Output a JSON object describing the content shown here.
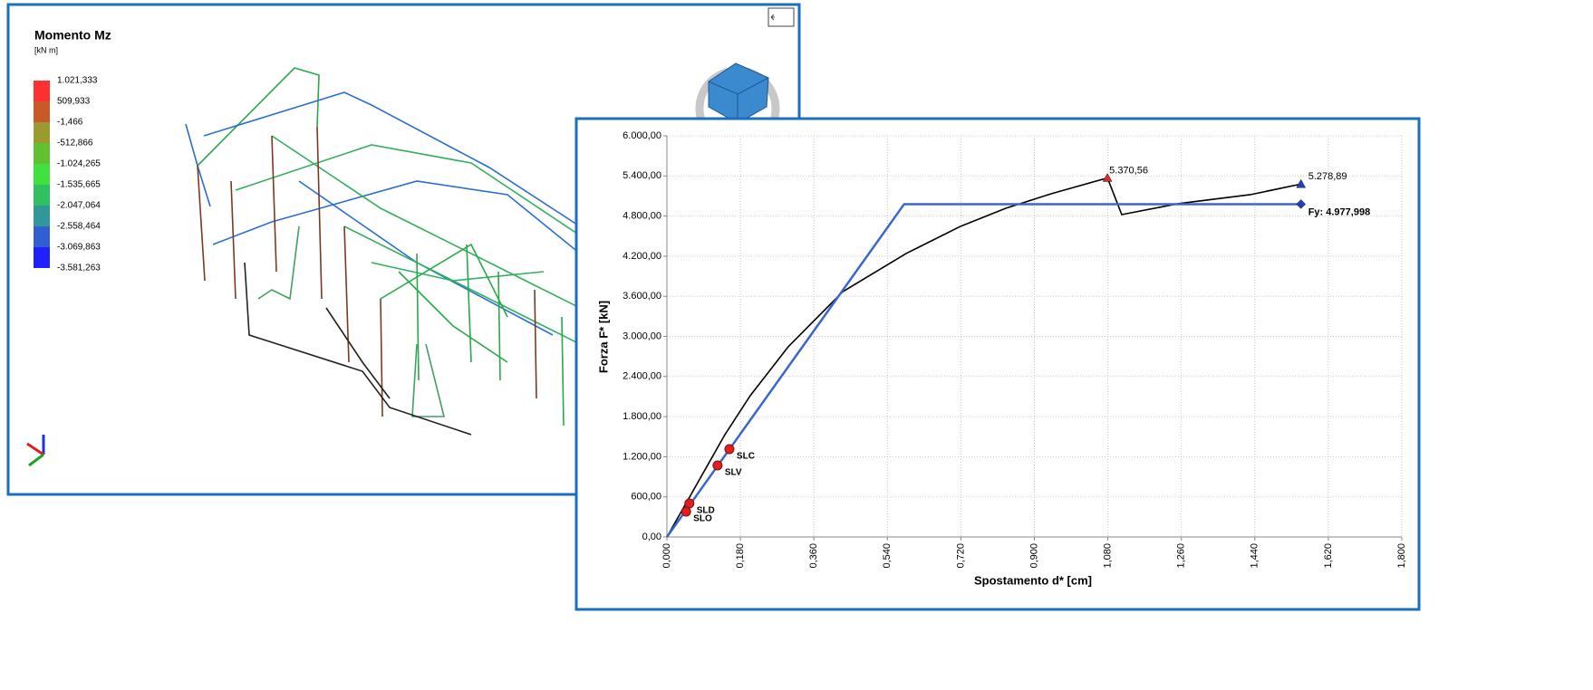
{
  "model_view": {
    "legend_title": "Momento Mz",
    "legend_unit": "[kN m]",
    "legend": [
      {
        "label": "1.021,333",
        "color": "#ff3030"
      },
      {
        "label": "509,933",
        "color": "#c85a28"
      },
      {
        "label": "-1,466",
        "color": "#9a9a30"
      },
      {
        "label": "-512,866",
        "color": "#60c030"
      },
      {
        "label": "-1.024,265",
        "color": "#40e040"
      },
      {
        "label": "-1.535,665",
        "color": "#30c060"
      },
      {
        "label": "-2.047,064",
        "color": "#309898"
      },
      {
        "label": "-2.558,464",
        "color": "#3060d0"
      },
      {
        "label": "-3.069,863",
        "color": "#2020ff"
      },
      {
        "label": "-3.581,263",
        "color": null
      }
    ]
  },
  "chart_data": {
    "type": "line",
    "xlabel": "Spostamento d* [cm]",
    "ylabel": "Forza F* [kN]",
    "xlim": [
      0,
      1.8
    ],
    "ylim": [
      0,
      6000
    ],
    "grid": true,
    "xticks": [
      {
        "value": 0,
        "label": "0,000"
      },
      {
        "value": 0.18,
        "label": "0,180"
      },
      {
        "value": 0.36,
        "label": "0,360"
      },
      {
        "value": 0.54,
        "label": "0,540"
      },
      {
        "value": 0.72,
        "label": "0,720"
      },
      {
        "value": 0.9,
        "label": "0,900"
      },
      {
        "value": 1.08,
        "label": "1,080"
      },
      {
        "value": 1.26,
        "label": "1,260"
      },
      {
        "value": 1.44,
        "label": "1,440"
      },
      {
        "value": 1.62,
        "label": "1,620"
      },
      {
        "value": 1.8,
        "label": "1,800"
      }
    ],
    "yticks": [
      {
        "value": 0,
        "label": "0,00"
      },
      {
        "value": 600,
        "label": "600,00"
      },
      {
        "value": 1200,
        "label": "1.200,00"
      },
      {
        "value": 1800,
        "label": "1.800,00"
      },
      {
        "value": 2400,
        "label": "2.400,00"
      },
      {
        "value": 3000,
        "label": "3.000,00"
      },
      {
        "value": 3600,
        "label": "3.600,00"
      },
      {
        "value": 4200,
        "label": "4.200,00"
      },
      {
        "value": 4800,
        "label": "4.800,00"
      },
      {
        "value": 5400,
        "label": "5.400,00"
      },
      {
        "value": 6000,
        "label": "6.000,00"
      }
    ],
    "series": [
      {
        "color": "#000000",
        "x": [
          0,
          0.142,
          0.204,
          0.297,
          0.431,
          0.586,
          0.719,
          0.83,
          0.941,
          1.079,
          1.114,
          1.252,
          1.429,
          1.553
        ],
        "values": [
          0,
          1530,
          2113,
          2844,
          3670,
          4240,
          4646,
          4917,
          5133,
          5370.56,
          4822,
          4985,
          5120,
          5278.89
        ]
      },
      {
        "color": "#3a66d0",
        "x": [
          0,
          0.581,
          1.553
        ],
        "values": [
          0,
          4977.998,
          4977.998
        ]
      }
    ],
    "points": [
      {
        "label": "SLO",
        "x": 0.047,
        "y": 379
      },
      {
        "label": "SLD",
        "x": 0.055,
        "y": 501
      },
      {
        "label": "SLV",
        "x": 0.124,
        "y": 1070
      },
      {
        "label": "SLC",
        "x": 0.153,
        "y": 1314
      }
    ],
    "points_color": "#e02020",
    "annotations": [
      {
        "label": "5.370,56",
        "x": 1.079,
        "y": 5370.56,
        "marker": "triangle",
        "color": "#d03030"
      },
      {
        "label": "5.278,89",
        "x": 1.553,
        "y": 5278.89,
        "marker": "triangle",
        "color": "#1f3fbf"
      },
      {
        "label": "Fy: 4.977,998",
        "x": 1.553,
        "y": 4977.998,
        "marker": "diamond",
        "color": "#1f3fbf"
      }
    ]
  }
}
